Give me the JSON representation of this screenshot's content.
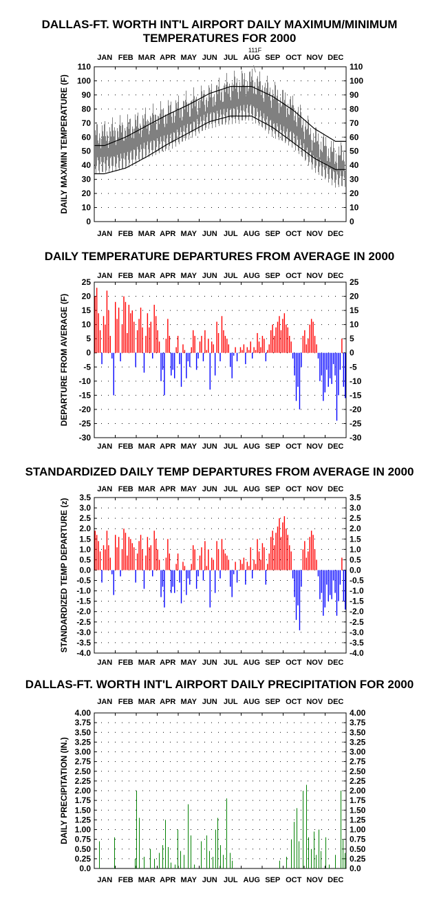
{
  "chart_data": [
    {
      "type": "line",
      "title": "DALLAS-FT. WORTH INT'L AIRPORT DAILY MAXIMUM/MINIMUM",
      "subtitle": "TEMPERATURES FOR 2000",
      "ylabel": "DAILY MAX/MIN TEMPERATURE (F)",
      "xlabel": "",
      "ylim": [
        0,
        110
      ],
      "yticks": [
        "110",
        "100",
        "90",
        "80",
        "70",
        "60",
        "50",
        "40",
        "30",
        "20",
        "10",
        "0"
      ],
      "months": [
        "JAN",
        "FEB",
        "MAR",
        "APR",
        "MAY",
        "JUN",
        "JUL",
        "AUG",
        "SEP",
        "OCT",
        "NOV",
        "DEC"
      ],
      "annotation": "111F",
      "series": [
        {
          "values_normal_high_by_month_mid": [
            54,
            60,
            68,
            76,
            83,
            91,
            96,
            96,
            89,
            79,
            66,
            57
          ]
        },
        {
          "values_normal_low_by_month_mid": [
            34,
            38,
            46,
            55,
            63,
            71,
            75,
            75,
            67,
            56,
            45,
            37
          ]
        },
        {
          "values_observed_max_by_month_mid": [
            62,
            66,
            71,
            77,
            83,
            89,
            96,
            100,
            91,
            80,
            59,
            47
          ]
        },
        {
          "values_observed_min_by_month_mid": [
            40,
            43,
            51,
            56,
            64,
            72,
            75,
            78,
            66,
            58,
            41,
            30
          ]
        }
      ],
      "grid": "dotted",
      "colors": {
        "observed": "#808080",
        "normal": "#000000"
      }
    },
    {
      "type": "bar",
      "title": "DAILY TEMPERATURE DEPARTURES FROM AVERAGE IN 2000",
      "ylabel": "DEPARTURE FROM AVERAGE (F)",
      "xlabel": "",
      "ylim": [
        -30,
        25
      ],
      "yticks": [
        "25",
        "20",
        "15",
        "10",
        "5",
        "0",
        "-5",
        "-10",
        "-15",
        "-20",
        "-25",
        "-30"
      ],
      "months": [
        "JAN",
        "FEB",
        "MAR",
        "APR",
        "MAY",
        "JUN",
        "JUL",
        "AUG",
        "SEP",
        "OCT",
        "NOV",
        "DEC"
      ],
      "values": [
        20,
        23,
        14,
        8,
        -4,
        13,
        10,
        22,
        15,
        6,
        -2,
        -15,
        18,
        12,
        16,
        -3,
        10,
        20,
        18,
        7,
        17,
        14,
        15,
        11,
        -5,
        8,
        12,
        16,
        9,
        -7,
        6,
        14,
        9,
        11,
        -2,
        17,
        13,
        8,
        4,
        -10,
        -6,
        -15,
        5,
        12,
        6,
        -8,
        -6,
        -9,
        2,
        6,
        -4,
        -12,
        3,
        1,
        -9,
        -3,
        -5,
        2,
        8,
        6,
        -6,
        -2,
        4,
        6,
        -3,
        8,
        1,
        5,
        -13,
        4,
        3,
        -8,
        11,
        7,
        -3,
        13,
        8,
        6,
        5,
        3,
        -5,
        -9,
        -1,
        2,
        -3,
        0,
        2,
        1,
        3,
        -4,
        2,
        1,
        4,
        -2,
        2,
        1,
        7,
        4,
        2,
        6,
        5,
        -3,
        1,
        3,
        8,
        10,
        6,
        9,
        11,
        13,
        8,
        12,
        14,
        10,
        9,
        6,
        4,
        -2,
        -8,
        -17,
        -12,
        -20,
        -5,
        6,
        8,
        3,
        5,
        10,
        12,
        11,
        6,
        3,
        -2,
        -10,
        -8,
        -17,
        -14,
        -6,
        -12,
        -9,
        -11,
        -4,
        -8,
        -24,
        -15,
        -6,
        5,
        -12,
        -16
      ],
      "grid": "dotted",
      "colors": {
        "positive": "#ff0000",
        "negative": "#0000ff"
      }
    },
    {
      "type": "bar",
      "title": "STANDARDIZED DAILY TEMP DEPARTURES FROM AVERAGE IN 2000",
      "ylabel": "STANDARDIZED TEMP DEPARTURE (z)",
      "xlabel": "",
      "ylim": [
        -4.0,
        3.5
      ],
      "yticks": [
        "3.5",
        "3.0",
        "2.5",
        "2.0",
        "1.5",
        "1.0",
        "0.5",
        "0.0",
        "-0.5",
        "-1.0",
        "-1.5",
        "-2.0",
        "-2.5",
        "-3.0",
        "-3.5",
        "-4.0"
      ],
      "months": [
        "JAN",
        "FEB",
        "MAR",
        "APR",
        "MAY",
        "JUN",
        "JUL",
        "AUG",
        "SEP",
        "OCT",
        "NOV",
        "DEC"
      ],
      "values": [
        1.9,
        1.7,
        1.4,
        0.9,
        -0.6,
        1.2,
        1.0,
        1.9,
        1.2,
        0.6,
        -0.2,
        -1.2,
        1.7,
        1.1,
        1.6,
        -0.3,
        1.0,
        2.0,
        1.8,
        0.7,
        1.6,
        1.5,
        1.3,
        1.1,
        -0.6,
        0.8,
        1.4,
        1.7,
        1.0,
        -0.9,
        0.7,
        1.6,
        1.1,
        1.2,
        -0.3,
        1.9,
        1.5,
        1.0,
        0.5,
        -1.3,
        -0.8,
        -1.8,
        0.6,
        1.5,
        0.8,
        -1.1,
        -0.8,
        -1.1,
        0.3,
        0.8,
        -0.6,
        -1.6,
        0.4,
        0.2,
        -1.2,
        -0.4,
        -0.7,
        0.3,
        1.2,
        1.0,
        -0.9,
        -0.3,
        0.7,
        1.1,
        -0.5,
        1.4,
        0.2,
        1.0,
        -1.8,
        0.6,
        0.5,
        -1.1,
        1.4,
        1.0,
        -0.4,
        1.5,
        1.0,
        0.8,
        0.7,
        0.5,
        -0.8,
        -1.3,
        -0.2,
        0.4,
        -0.6,
        0.0,
        0.5,
        0.3,
        0.6,
        -0.7,
        0.4,
        0.2,
        1.1,
        -0.4,
        0.5,
        0.3,
        1.5,
        0.9,
        0.5,
        1.3,
        1.1,
        -0.7,
        0.3,
        0.8,
        1.6,
        1.9,
        1.2,
        1.8,
        2.1,
        2.5,
        1.6,
        2.3,
        2.6,
        2.0,
        1.7,
        1.2,
        0.9,
        -0.4,
        -1.3,
        -2.4,
        -1.7,
        -2.9,
        -0.8,
        1.0,
        1.4,
        0.6,
        0.9,
        1.6,
        1.9,
        1.7,
        1.0,
        0.5,
        -0.3,
        -1.4,
        -1.1,
        -2.2,
        -1.8,
        -0.7,
        -1.5,
        -1.2,
        -1.4,
        -0.5,
        -1.1,
        -2.2,
        -1.5,
        -0.7,
        0.6,
        -1.5,
        -1.9
      ],
      "grid": "dotted",
      "colors": {
        "positive": "#ff0000",
        "negative": "#0000ff"
      }
    },
    {
      "type": "bar",
      "title": "DALLAS-FT. WORTH INT'L AIRPORT DAILY PRECIPITATION FOR 2000",
      "ylabel": "DAILY PRECIPITATION (IN.)",
      "xlabel": "",
      "ylim": [
        0,
        4.0
      ],
      "yticks": [
        "4.00",
        "3.75",
        "3.50",
        "3.25",
        "3.00",
        "2.75",
        "2.50",
        "2.25",
        "2.00",
        "1.75",
        "1.50",
        "1.25",
        "1.00",
        "0.75",
        "0.50",
        "0.25",
        "0.0"
      ],
      "months": [
        "JAN",
        "FEB",
        "MAR",
        "APR",
        "MAY",
        "JUN",
        "JUL",
        "AUG",
        "SEP",
        "OCT",
        "NOV",
        "DEC"
      ],
      "values": [
        [
          8,
          0.7
        ],
        [
          30,
          0.8
        ],
        [
          60,
          0.25
        ],
        [
          62,
          2.0
        ],
        [
          66,
          1.3
        ],
        [
          73,
          0.3
        ],
        [
          82,
          0.5
        ],
        [
          88,
          0.25
        ],
        [
          95,
          0.4
        ],
        [
          100,
          0.6
        ],
        [
          104,
          1.25
        ],
        [
          108,
          0.55
        ],
        [
          112,
          0.15
        ],
        [
          118,
          0.1
        ],
        [
          122,
          1.0
        ],
        [
          126,
          0.45
        ],
        [
          131,
          0.35
        ],
        [
          137,
          1.65
        ],
        [
          141,
          0.85
        ],
        [
          146,
          0.1
        ],
        [
          156,
          0.7
        ],
        [
          164,
          0.85
        ],
        [
          168,
          0.45
        ],
        [
          173,
          0.3
        ],
        [
          177,
          1.0
        ],
        [
          180,
          1.3
        ],
        [
          184,
          0.6
        ],
        [
          188,
          0.35
        ],
        [
          193,
          1.8
        ],
        [
          198,
          0.4
        ],
        [
          201,
          0.2
        ],
        [
          270,
          0.2
        ],
        [
          280,
          0.3
        ],
        [
          287,
          0.75
        ],
        [
          291,
          1.2
        ],
        [
          295,
          1.55
        ],
        [
          298,
          0.7
        ],
        [
          304,
          2.0
        ],
        [
          309,
          2.15
        ],
        [
          312,
          0.8
        ],
        [
          316,
          0.5
        ],
        [
          320,
          0.95
        ],
        [
          323,
          0.35
        ],
        [
          327,
          1.0
        ],
        [
          330,
          0.45
        ],
        [
          337,
          0.8
        ],
        [
          342,
          0.1
        ],
        [
          351,
          0.35
        ],
        [
          359,
          2.0
        ],
        [
          362,
          0.75
        ],
        [
          365,
          0.4
        ]
      ],
      "grid": "dotted",
      "colors": {
        "bars": "#008000"
      }
    }
  ]
}
